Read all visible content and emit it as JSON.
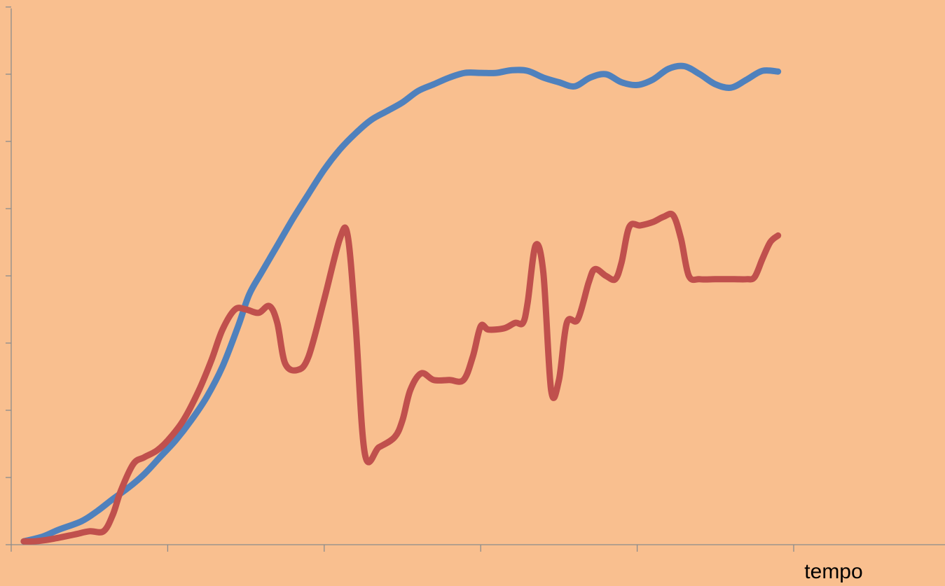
{
  "colors": {
    "background": "#f9bf8f",
    "axis": "#8c8c8c",
    "text": "#000000"
  },
  "chart_data": {
    "type": "line",
    "title": "",
    "xlabel": "tempo",
    "ylabel": "",
    "xlim": [
      0,
      50
    ],
    "ylim": [
      0,
      8
    ],
    "x_major_ticks": [
      0,
      10,
      20,
      30,
      40,
      50
    ],
    "y_major_ticks": [
      0,
      1,
      2,
      3,
      4,
      5,
      6,
      7,
      8
    ],
    "tick_labels_shown": false,
    "grid": false,
    "legend": "none",
    "series": [
      {
        "color": "#4f81bd",
        "points": [
          [
            0.8,
            0.05
          ],
          [
            2,
            0.12
          ],
          [
            3,
            0.22
          ],
          [
            4.5,
            0.35
          ],
          [
            5.5,
            0.5
          ],
          [
            6.5,
            0.68
          ],
          [
            7.5,
            0.85
          ],
          [
            8.5,
            1.05
          ],
          [
            9.5,
            1.3
          ],
          [
            10.5,
            1.55
          ],
          [
            11.5,
            1.85
          ],
          [
            12.5,
            2.2
          ],
          [
            13.5,
            2.65
          ],
          [
            14.5,
            3.25
          ],
          [
            15.2,
            3.72
          ],
          [
            16,
            4.05
          ],
          [
            17,
            4.45
          ],
          [
            18,
            4.85
          ],
          [
            19,
            5.22
          ],
          [
            20,
            5.58
          ],
          [
            21,
            5.88
          ],
          [
            22,
            6.12
          ],
          [
            23,
            6.32
          ],
          [
            24,
            6.45
          ],
          [
            25,
            6.58
          ],
          [
            26,
            6.75
          ],
          [
            27,
            6.85
          ],
          [
            28,
            6.95
          ],
          [
            29,
            7.02
          ],
          [
            30,
            7.02
          ],
          [
            31,
            7.02
          ],
          [
            32,
            7.06
          ],
          [
            33,
            7.05
          ],
          [
            34,
            6.95
          ],
          [
            35,
            6.88
          ],
          [
            36,
            6.82
          ],
          [
            37,
            6.95
          ],
          [
            38,
            7.0
          ],
          [
            39,
            6.88
          ],
          [
            40,
            6.84
          ],
          [
            41,
            6.92
          ],
          [
            42,
            7.08
          ],
          [
            43,
            7.12
          ],
          [
            44,
            7.0
          ],
          [
            45,
            6.85
          ],
          [
            46,
            6.8
          ],
          [
            47,
            6.92
          ],
          [
            48,
            7.05
          ],
          [
            49,
            7.04
          ]
        ]
      },
      {
        "color": "#c0504d",
        "points": [
          [
            0.8,
            0.05
          ],
          [
            1.5,
            0.05
          ],
          [
            2.5,
            0.08
          ],
          [
            4,
            0.15
          ],
          [
            5,
            0.2
          ],
          [
            5.9,
            0.2
          ],
          [
            6.5,
            0.45
          ],
          [
            7,
            0.8
          ],
          [
            7.8,
            1.2
          ],
          [
            8.5,
            1.3
          ],
          [
            9.3,
            1.4
          ],
          [
            10,
            1.55
          ],
          [
            11,
            1.85
          ],
          [
            12,
            2.3
          ],
          [
            12.8,
            2.75
          ],
          [
            13.5,
            3.2
          ],
          [
            14.3,
            3.5
          ],
          [
            15,
            3.5
          ],
          [
            15.8,
            3.45
          ],
          [
            16.5,
            3.55
          ],
          [
            17,
            3.3
          ],
          [
            17.5,
            2.7
          ],
          [
            18.3,
            2.6
          ],
          [
            19,
            2.8
          ],
          [
            20,
            3.65
          ],
          [
            21,
            4.55
          ],
          [
            21.5,
            4.6
          ],
          [
            22,
            3.3
          ],
          [
            22.6,
            1.35
          ],
          [
            23.5,
            1.45
          ],
          [
            24.5,
            1.6
          ],
          [
            25,
            1.85
          ],
          [
            25.5,
            2.3
          ],
          [
            26.2,
            2.55
          ],
          [
            27,
            2.45
          ],
          [
            28,
            2.45
          ],
          [
            28.9,
            2.45
          ],
          [
            29.5,
            2.8
          ],
          [
            30,
            3.25
          ],
          [
            30.5,
            3.2
          ],
          [
            31.5,
            3.22
          ],
          [
            32.2,
            3.3
          ],
          [
            32.7,
            3.3
          ],
          [
            33,
            3.6
          ],
          [
            33.5,
            4.45
          ],
          [
            34,
            4.05
          ],
          [
            34.5,
            2.3
          ],
          [
            35,
            2.45
          ],
          [
            35.5,
            3.3
          ],
          [
            36.2,
            3.35
          ],
          [
            36.9,
            3.9
          ],
          [
            37.3,
            4.1
          ],
          [
            38,
            4.0
          ],
          [
            38.6,
            3.95
          ],
          [
            39,
            4.2
          ],
          [
            39.5,
            4.73
          ],
          [
            40.2,
            4.75
          ],
          [
            41,
            4.8
          ],
          [
            41.7,
            4.88
          ],
          [
            42.3,
            4.9
          ],
          [
            42.8,
            4.55
          ],
          [
            43.3,
            4.0
          ],
          [
            44,
            3.95
          ],
          [
            45,
            3.95
          ],
          [
            46.2,
            3.95
          ],
          [
            47,
            3.95
          ],
          [
            47.5,
            3.98
          ],
          [
            48,
            4.25
          ],
          [
            48.5,
            4.5
          ],
          [
            49,
            4.6
          ]
        ]
      }
    ]
  }
}
